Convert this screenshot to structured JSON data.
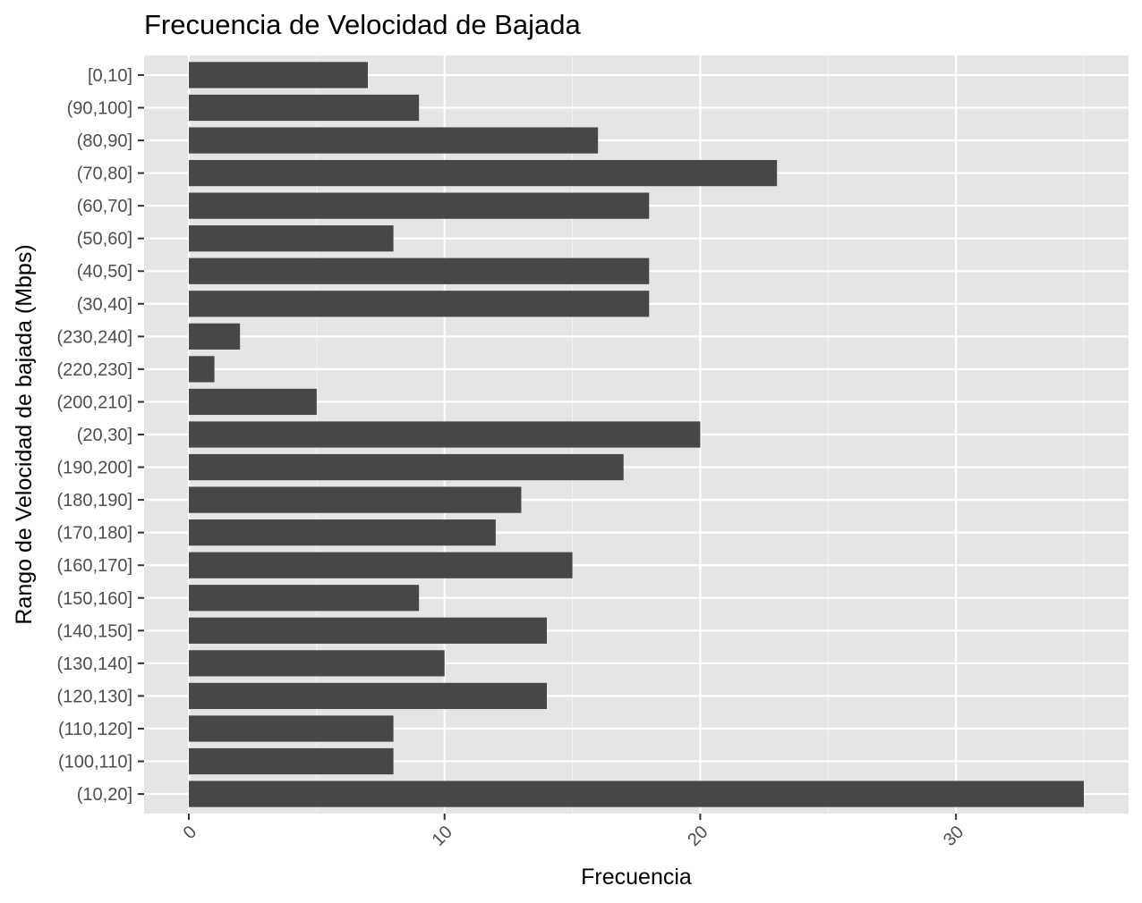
{
  "chart_data": {
    "type": "bar",
    "orientation": "horizontal",
    "title": "Frecuencia de Velocidad de Bajada",
    "xlabel": "Frecuencia",
    "ylabel": "Rango de Velocidad de bajada (Mbps)",
    "categories": [
      "[0,10]",
      "(90,100]",
      "(80,90]",
      "(70,80]",
      "(60,70]",
      "(50,60]",
      "(40,50]",
      "(30,40]",
      "(230,240]",
      "(220,230]",
      "(200,210]",
      "(20,30]",
      "(190,200]",
      "(180,190]",
      "(170,180]",
      "(160,170]",
      "(150,160]",
      "(140,150]",
      "(130,140]",
      "(120,130]",
      "(110,120]",
      "(100,110]",
      "(10,20]"
    ],
    "values": [
      7,
      9,
      16,
      23,
      18,
      8,
      18,
      18,
      2,
      1,
      5,
      20,
      17,
      13,
      12,
      15,
      9,
      14,
      10,
      14,
      8,
      8,
      35
    ],
    "xlim": [
      -1.75,
      36.75
    ],
    "xticks": [
      0,
      10,
      20,
      30
    ],
    "xtick_labels": [
      "0",
      "10",
      "20",
      "30"
    ],
    "xtick_rotation": -45,
    "grid": true,
    "legend": "none",
    "colors": {
      "bar": "#474747",
      "panel": "#e5e5e5",
      "grid_major": "#ffffff",
      "grid_minor": "#f2f2f2",
      "tick": "#333333"
    }
  }
}
